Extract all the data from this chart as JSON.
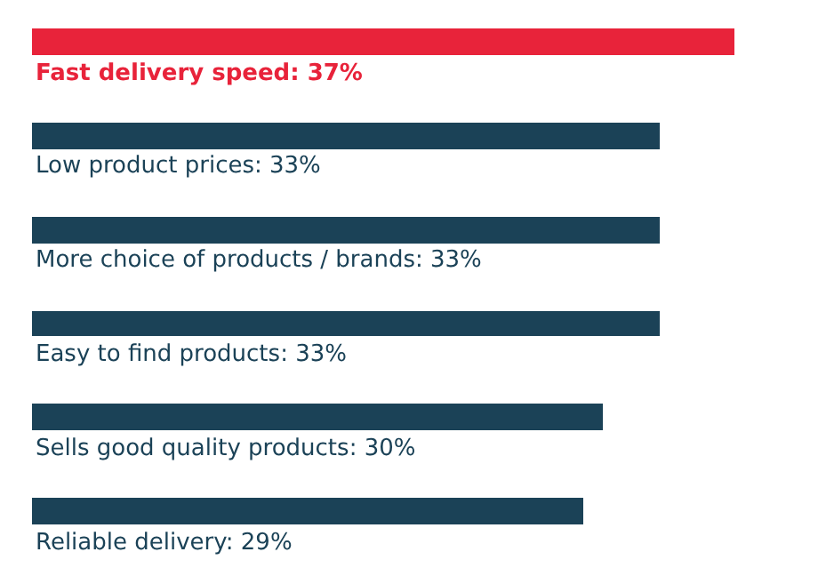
{
  "chart_data": {
    "type": "bar",
    "orientation": "horizontal",
    "categories": [
      "Fast delivery speed",
      "Low product prices",
      "More choice of products / brands",
      "Easy to find products",
      "Sells good quality products",
      "Reliable delivery"
    ],
    "values": [
      37,
      33,
      33,
      33,
      30,
      29
    ],
    "value_labels": [
      ": 37%",
      ": 33%",
      ": 33%",
      ": 33%",
      ": 30%",
      ": 29%"
    ],
    "colors": [
      "#e8233a",
      "#1b4257",
      "#1b4257",
      "#1b4257",
      "#1b4257",
      "#1b4257"
    ]
  }
}
